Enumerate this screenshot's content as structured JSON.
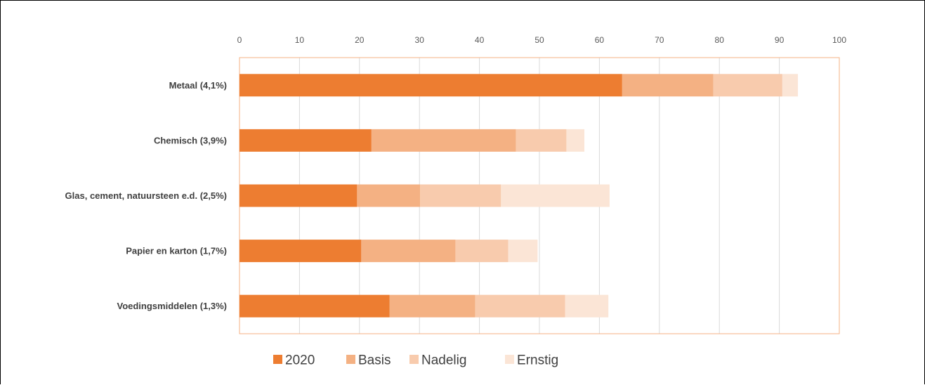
{
  "chart_data": {
    "type": "bar",
    "orientation": "horizontal",
    "stacked": true,
    "categories": [
      "Metaal (4,1%)",
      "Chemisch (3,9%)",
      "Glas, cement, natuursteen e.d. (2,5%)",
      "Papier en karton (1,7%)",
      "Voedingsmiddelen (1,3%)"
    ],
    "series": [
      {
        "name": "2020",
        "color": "#ed7d31",
        "values": [
          63.8,
          22.0,
          19.6,
          20.3,
          25.0
        ]
      },
      {
        "name": "Basis",
        "color": "#f4b183",
        "values": [
          15.2,
          24.1,
          10.5,
          15.7,
          14.3
        ]
      },
      {
        "name": "Nadelig",
        "color": "#f8cbad",
        "values": [
          11.5,
          8.4,
          13.5,
          8.8,
          15.0
        ]
      },
      {
        "name": "Ernstig",
        "color": "#fbe5d6",
        "values": [
          2.6,
          3.0,
          18.1,
          4.9,
          7.2
        ]
      }
    ],
    "xlim": [
      0,
      100
    ],
    "xticks": [
      0,
      10,
      20,
      30,
      40,
      50,
      60,
      70,
      80,
      90,
      100
    ],
    "x_axis_position": "top",
    "grid": true,
    "legend_position": "bottom",
    "title": "",
    "xlabel": "",
    "ylabel": ""
  }
}
